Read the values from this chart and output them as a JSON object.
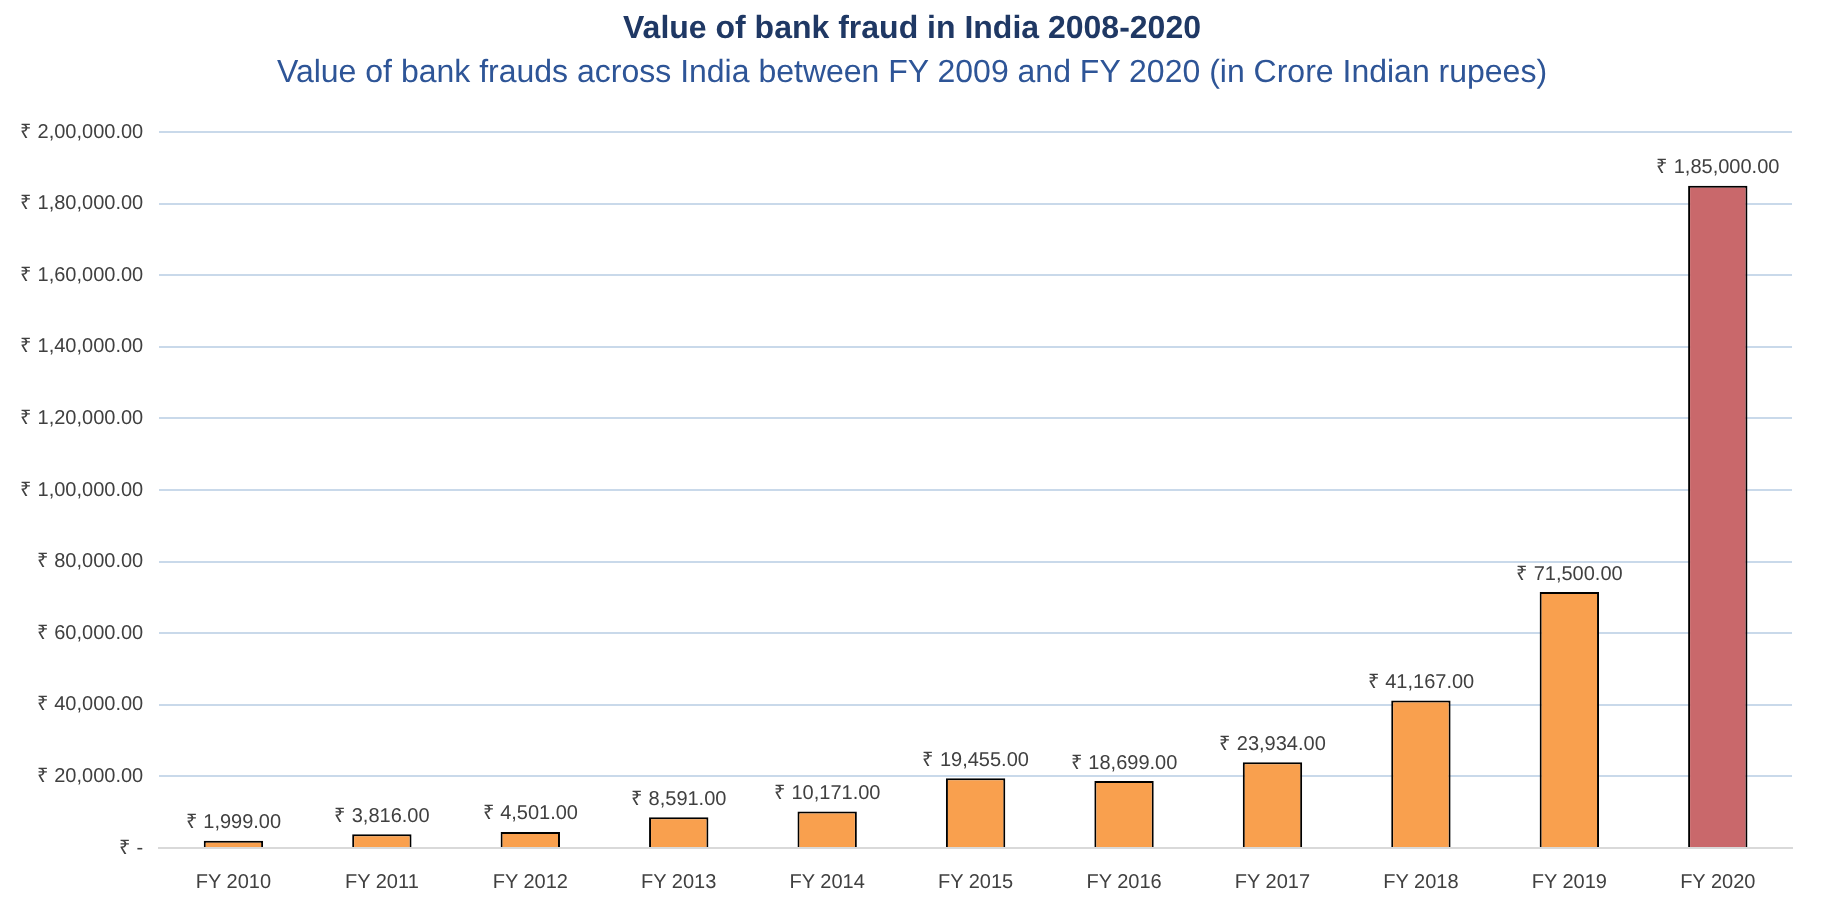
{
  "chart_data": {
    "type": "bar",
    "title": "Value of bank fraud in India 2008-2020",
    "subtitle": "Value of bank frauds across India between FY 2009 and FY 2020 (in Crore Indian rupees)",
    "categories": [
      "FY 2010",
      "FY 2011",
      "FY 2012",
      "FY 2013",
      "FY 2014",
      "FY 2015",
      "FY 2016",
      "FY 2017",
      "FY 2018",
      "FY 2019",
      "FY 2020"
    ],
    "values": [
      1999,
      3816,
      4501,
      8591,
      10171,
      19455,
      18699,
      23934,
      41167,
      71500,
      185000
    ],
    "colors": [
      "#f9a04e",
      "#f9a04e",
      "#f9a04e",
      "#f9a04e",
      "#f9a04e",
      "#f9a04e",
      "#f9a04e",
      "#f9a04e",
      "#f9a04e",
      "#f9a04e",
      "#c9686b"
    ],
    "value_labels": [
      "₹ 1,999.00",
      "₹ 3,816.00",
      "₹ 4,501.00",
      "₹ 8,591.00",
      "₹ 10,171.00",
      "₹ 19,455.00",
      "₹ 18,699.00",
      "₹ 23,934.00",
      "₹ 41,167.00",
      "₹ 71,500.00",
      "₹ 1,85,000.00"
    ],
    "ylim": [
      0,
      200000
    ],
    "yticks": [
      {
        "value": 0,
        "label": "₹ -"
      },
      {
        "value": 20000,
        "label": "₹ 20,000.00"
      },
      {
        "value": 40000,
        "label": "₹ 40,000.00"
      },
      {
        "value": 60000,
        "label": "₹ 60,000.00"
      },
      {
        "value": 80000,
        "label": "₹ 80,000.00"
      },
      {
        "value": 100000,
        "label": "₹ 1,00,000.00"
      },
      {
        "value": 120000,
        "label": "₹ 1,20,000.00"
      },
      {
        "value": 140000,
        "label": "₹ 1,40,000.00"
      },
      {
        "value": 160000,
        "label": "₹ 1,60,000.00"
      },
      {
        "value": 180000,
        "label": "₹ 1,80,000.00"
      },
      {
        "value": 200000,
        "label": "₹ 2,00,000.00"
      }
    ],
    "grid": "y",
    "legend": false
  }
}
